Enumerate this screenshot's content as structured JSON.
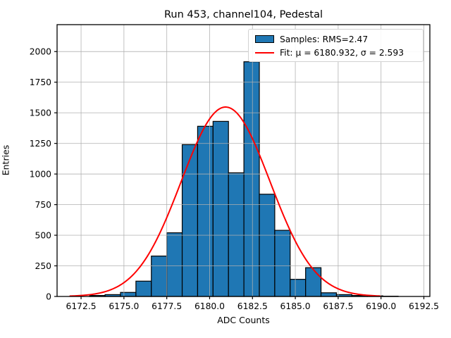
{
  "title": "Run 453, channel104, Pedestal",
  "xlabel": "ADC Counts",
  "ylabel": "Entries",
  "legend": {
    "samples_label": "Samples: RMS=2.47",
    "fit_label": "Fit: μ = 6180.932, σ = 2.593"
  },
  "colors": {
    "bar_fill": "#1f77b4",
    "bar_edge": "#000000",
    "fit_line": "#ff0000",
    "grid": "#b0b0b0",
    "spine": "#000000"
  },
  "chart_data": {
    "type": "bar",
    "subtype": "histogram",
    "title": "Run 453, channel104, Pedestal",
    "xlabel": "ADC Counts",
    "ylabel": "Entries",
    "bin_start": 6173.0,
    "bin_width": 0.9,
    "counts": [
      8,
      15,
      33,
      125,
      330,
      520,
      1240,
      1390,
      1430,
      1010,
      1917,
      835,
      540,
      140,
      235,
      30,
      15,
      8,
      5,
      2
    ],
    "bin_centers": [
      6173.45,
      6174.35,
      6175.25,
      6176.15,
      6177.05,
      6177.95,
      6178.85,
      6179.75,
      6180.65,
      6181.55,
      6182.45,
      6183.35,
      6184.25,
      6185.15,
      6186.05,
      6186.95,
      6187.85,
      6188.75,
      6189.65,
      6190.55
    ],
    "fit": {
      "type": "gaussian",
      "mu": 6180.932,
      "sigma": 2.593,
      "amplitude": 1547,
      "x_min": 6171.86,
      "x_max": 6190.0
    },
    "rms": 2.47,
    "xlim": [
      6171.1,
      6192.85
    ],
    "ylim": [
      0,
      2220
    ],
    "xticks": {
      "values": [
        6172.5,
        6175.0,
        6177.5,
        6180.0,
        6182.5,
        6185.0,
        6187.5,
        6190.0,
        6192.5
      ],
      "labels": [
        "6172.5",
        "6175.0",
        "6177.5",
        "6180.0",
        "6182.5",
        "6185.0",
        "6187.5",
        "6190.0",
        "6192.5"
      ]
    },
    "yticks": {
      "values": [
        0,
        250,
        500,
        750,
        1000,
        1250,
        1500,
        1750,
        2000
      ],
      "labels": [
        "0",
        "250",
        "500",
        "750",
        "1000",
        "1250",
        "1500",
        "1750",
        "2000"
      ]
    },
    "grid": true,
    "legend_position": "upper right"
  }
}
